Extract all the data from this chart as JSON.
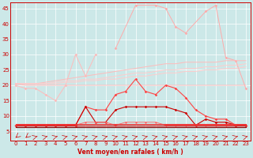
{
  "x": [
    0,
    1,
    2,
    3,
    4,
    5,
    6,
    7,
    8,
    9,
    10,
    11,
    12,
    13,
    14,
    15,
    16,
    17,
    18,
    19,
    20,
    21,
    22,
    23
  ],
  "line_lightsalmon_spiky": [
    null,
    null,
    null,
    null,
    null,
    null,
    null,
    null,
    null,
    null,
    32,
    null,
    46,
    null,
    46,
    45,
    39,
    37,
    null,
    44,
    46,
    29,
    28,
    19
  ],
  "line_pink_spiky": [
    20,
    19,
    19,
    17,
    15,
    20,
    30,
    23,
    30,
    null,
    null,
    null,
    null,
    null,
    null,
    null,
    null,
    null,
    null,
    null,
    null,
    null,
    null,
    null
  ],
  "line_salmon_trend1": [
    20.5,
    20.5,
    20.5,
    21,
    21.5,
    22,
    22.5,
    23,
    23.5,
    24,
    24.5,
    25,
    25.5,
    26,
    26.5,
    27,
    27,
    27.5,
    27.5,
    27.5,
    27.5,
    28,
    28,
    28
  ],
  "line_salmon_trend2": [
    20.5,
    20.5,
    20.5,
    20.5,
    21,
    21.5,
    21.5,
    22,
    22,
    22.5,
    23,
    23.5,
    24,
    24,
    24.5,
    25,
    25,
    25.5,
    25.5,
    26,
    26,
    26.5,
    26.5,
    27
  ],
  "line_salmon_trend3": [
    20.5,
    20.5,
    20.5,
    20.5,
    20.5,
    21,
    21,
    21.5,
    21.5,
    22,
    22,
    22.5,
    23,
    23,
    23.5,
    24,
    24,
    24.5,
    24.5,
    25,
    25,
    25.5,
    25.5,
    26
  ],
  "line_pink_flat": [
    20.5,
    20,
    20,
    20,
    20,
    20,
    20,
    20,
    20,
    20,
    20,
    20,
    20,
    20,
    20,
    20,
    20,
    20,
    20,
    20,
    20,
    20,
    20,
    20
  ],
  "line_med_red_spiky": [
    7,
    7,
    7,
    7,
    7,
    7,
    7,
    13,
    12,
    12,
    17,
    18,
    22,
    18,
    17,
    20,
    19,
    16,
    12,
    10,
    9,
    9,
    7,
    7
  ],
  "line_darkred_med": [
    7,
    7,
    7,
    7,
    7,
    7,
    7,
    13,
    8,
    8,
    12,
    13,
    13,
    13,
    13,
    13,
    12,
    11,
    7,
    9,
    8,
    8,
    7,
    7
  ],
  "line_red_flat1": [
    7.5,
    7.5,
    7.5,
    7.5,
    7.5,
    7.5,
    7.5,
    7.5,
    7.5,
    7.5,
    7.5,
    7.5,
    7.5,
    7.5,
    7.5,
    7.5,
    7.5,
    7.5,
    7.5,
    7.5,
    7.5,
    7.5,
    7.5,
    7.5
  ],
  "line_red_flat2": [
    7,
    7,
    7,
    7,
    7,
    7,
    7,
    7,
    7,
    7,
    7,
    7,
    7,
    7,
    7,
    7,
    7,
    7,
    7,
    7,
    7,
    7,
    7,
    7
  ],
  "line_darkred_flat": [
    6.5,
    6.5,
    6.5,
    6.5,
    6.5,
    6.5,
    6.5,
    6.5,
    6.5,
    6.5,
    6.5,
    6.5,
    6.5,
    6.5,
    6.5,
    6.5,
    6.5,
    6.5,
    6.5,
    6.5,
    6.5,
    6.5,
    6.5,
    6.5
  ],
  "line_pink_dots": [
    7,
    7,
    7,
    7,
    7,
    7,
    7,
    8,
    8,
    8,
    7,
    8,
    8,
    8,
    8,
    7,
    7,
    7,
    7,
    7,
    7,
    7,
    7,
    7
  ],
  "bg_color": "#cce8e8",
  "grid_color": "#ffffff",
  "xlabel": "Vent moyen/en rafales ( km/h )",
  "ylim": [
    2,
    47
  ],
  "yticks": [
    5,
    10,
    15,
    20,
    25,
    30,
    35,
    40,
    45
  ],
  "xticks": [
    0,
    1,
    2,
    3,
    4,
    5,
    6,
    7,
    8,
    9,
    10,
    11,
    12,
    13,
    14,
    15,
    16,
    17,
    18,
    19,
    20,
    21,
    22,
    23
  ],
  "xlim": [
    -0.5,
    23.5
  ]
}
